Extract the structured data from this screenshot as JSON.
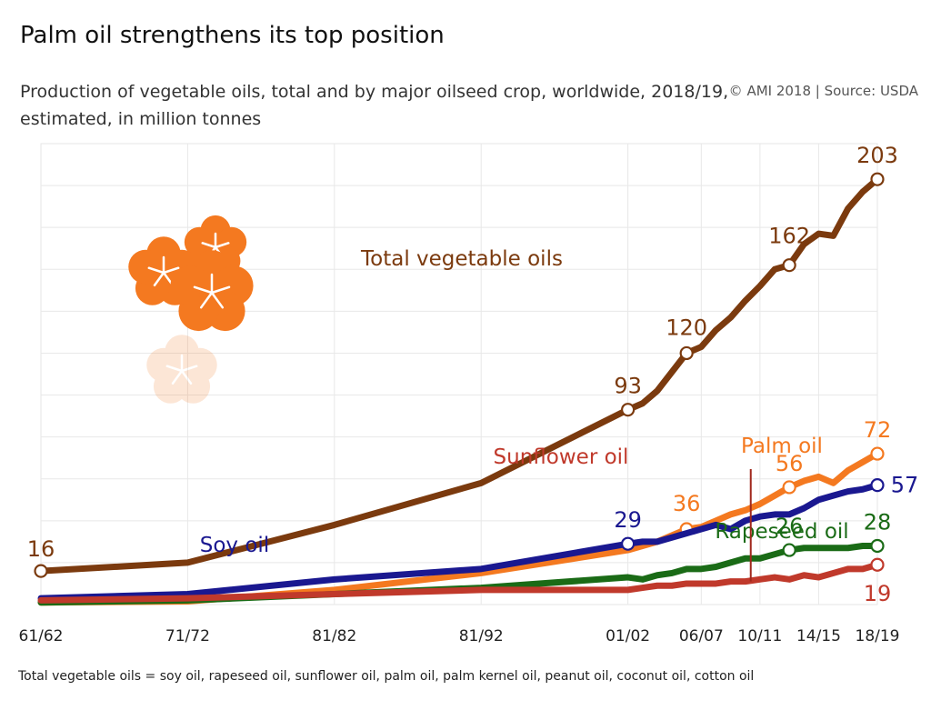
{
  "title": "Palm oil strengthens its top position",
  "subtitle": "Production of vegetable oils, total and by major oilseed crop, worldwide, 2018/19, estimated, in million tonnes",
  "source": "© AMI 2018 | Source: USDA",
  "footnote": "Total vegetable oils = soy oil, rapeseed oil, sunflower oil, palm oil, palm kernel oil, peanut oil, coconut oil, cotton oil",
  "decoration": {
    "icon": "hibiscus-flower-icon",
    "color": "#F47920"
  },
  "chart_data": {
    "type": "line",
    "x_ticks": [
      "61/62",
      "71/72",
      "81/82",
      "81/92",
      "01/02",
      "06/07",
      "10/11",
      "14/15",
      "18/19"
    ],
    "ylim": [
      0,
      220
    ],
    "grid": true,
    "series": [
      {
        "name": "Total vegetable oils",
        "color": "#7B3A0E",
        "x": [
          1,
          11,
          21,
          31,
          41,
          42,
          43,
          44,
          45,
          46,
          47,
          48,
          49,
          50,
          51,
          52,
          53,
          54,
          55,
          56,
          57,
          58
        ],
        "values": [
          16,
          20,
          38,
          58,
          93,
          96,
          102,
          111,
          120,
          123,
          131,
          137,
          145,
          152,
          160,
          162,
          172,
          177,
          176,
          189,
          197,
          203
        ],
        "labeled": [
          {
            "x": 1,
            "value": "16"
          },
          {
            "x": 41,
            "value": "93"
          },
          {
            "x": 45,
            "value": "120"
          },
          {
            "x": 52,
            "value": "162"
          },
          {
            "x": 58,
            "value": "203"
          }
        ]
      },
      {
        "name": "Palm oil",
        "color": "#F47920",
        "x": [
          1,
          11,
          21,
          31,
          41,
          42,
          43,
          44,
          45,
          46,
          47,
          48,
          49,
          50,
          51,
          52,
          53,
          54,
          55,
          56,
          57,
          58
        ],
        "values": [
          1,
          1.5,
          7,
          15,
          26,
          28,
          30,
          33,
          36,
          37,
          40,
          43,
          45,
          48,
          52,
          56,
          59,
          61,
          58,
          64,
          68,
          72
        ],
        "labeled": [
          {
            "x": 45,
            "value": "36"
          },
          {
            "x": 52,
            "value": "56"
          },
          {
            "x": 58,
            "value": "72"
          }
        ]
      },
      {
        "name": "Soy oil",
        "color": "#1A1890",
        "x": [
          1,
          11,
          21,
          31,
          41,
          42,
          43,
          44,
          45,
          46,
          47,
          48,
          49,
          50,
          51,
          52,
          53,
          54,
          55,
          56,
          57,
          58
        ],
        "values": [
          3,
          5,
          12,
          17,
          29,
          30,
          30,
          32,
          34,
          36,
          38,
          36,
          40,
          42,
          43,
          43,
          46,
          50,
          52,
          54,
          55,
          57
        ],
        "labeled": [
          {
            "x": 41,
            "value": "29"
          },
          {
            "x": 58,
            "value": "57"
          }
        ]
      },
      {
        "name": "Rapeseed oil",
        "color": "#1A6B16",
        "x": [
          1,
          11,
          21,
          31,
          41,
          42,
          43,
          44,
          45,
          46,
          47,
          48,
          49,
          50,
          51,
          52,
          53,
          54,
          55,
          56,
          57,
          58
        ],
        "values": [
          1,
          2,
          5,
          8,
          13,
          12,
          14,
          15,
          17,
          17,
          18,
          20,
          22,
          22,
          24,
          26,
          27,
          27,
          27,
          27,
          28,
          28
        ],
        "labeled": [
          {
            "x": 52,
            "value": "26"
          },
          {
            "x": 58,
            "value": "28"
          }
        ]
      },
      {
        "name": "Sunflower oil",
        "color": "#C0392B",
        "x": [
          1,
          11,
          21,
          31,
          41,
          42,
          43,
          44,
          45,
          46,
          47,
          48,
          49,
          50,
          51,
          52,
          53,
          54,
          55,
          56,
          57,
          58
        ],
        "values": [
          2,
          3,
          5,
          7,
          7,
          8,
          9,
          9,
          10,
          10,
          10,
          11,
          11,
          12,
          13,
          12,
          14,
          13,
          15,
          17,
          17,
          19
        ],
        "labeled": [
          {
            "x": 58,
            "value": "19"
          }
        ]
      }
    ]
  }
}
